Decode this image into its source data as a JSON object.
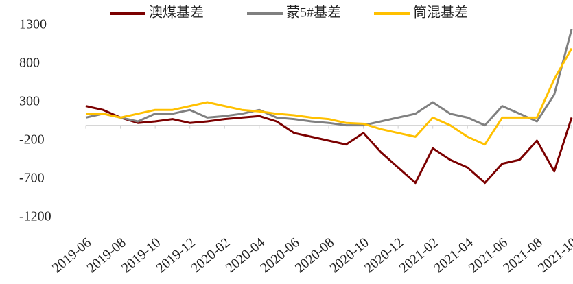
{
  "chart_data": {
    "type": "line",
    "x": [
      "2019-06",
      "2019-07",
      "2019-08",
      "2019-09",
      "2019-10",
      "2019-11",
      "2019-12",
      "2020-01",
      "2020-02",
      "2020-03",
      "2020-04",
      "2020-05",
      "2020-06",
      "2020-07",
      "2020-08",
      "2020-09",
      "2020-10",
      "2020-11",
      "2020-12",
      "2021-01",
      "2021-02",
      "2021-03",
      "2021-04",
      "2021-05",
      "2021-06",
      "2021-07",
      "2021-08",
      "2021-09",
      "2021-10"
    ],
    "series": [
      {
        "name": "澳煤基差",
        "color": "#7b0000",
        "values": [
          250,
          200,
          100,
          30,
          50,
          80,
          30,
          50,
          80,
          100,
          120,
          50,
          -100,
          -150,
          -200,
          -250,
          -100,
          -350,
          -550,
          -750,
          -300,
          -450,
          -550,
          -750,
          -500,
          -450,
          -200,
          -600,
          100
        ]
      },
      {
        "name": "蒙5#基差",
        "color": "#808080",
        "values": [
          100,
          150,
          100,
          50,
          150,
          150,
          200,
          100,
          120,
          150,
          200,
          100,
          80,
          50,
          30,
          0,
          0,
          50,
          100,
          150,
          300,
          150,
          100,
          0,
          250,
          150,
          50,
          400,
          1250
        ]
      },
      {
        "name": "筒混基差",
        "color": "#ffc000",
        "values": [
          150,
          150,
          100,
          150,
          200,
          200,
          250,
          300,
          250,
          200,
          180,
          150,
          130,
          100,
          80,
          30,
          20,
          -50,
          -100,
          -150,
          100,
          0,
          -150,
          -250,
          100,
          100,
          100,
          600,
          1000
        ]
      }
    ],
    "ylim": [
      -1200,
      1300
    ],
    "yticks": [
      -1200,
      -700,
      -200,
      300,
      800,
      1300
    ],
    "xticks": [
      "2019-06",
      "2019-08",
      "2019-10",
      "2019-12",
      "2020-02",
      "2020-04",
      "2020-06",
      "2020-08",
      "2020-10",
      "2020-12",
      "2021-02",
      "2021-04",
      "2021-06",
      "2021-08",
      "2021-10"
    ],
    "legend": "top"
  }
}
